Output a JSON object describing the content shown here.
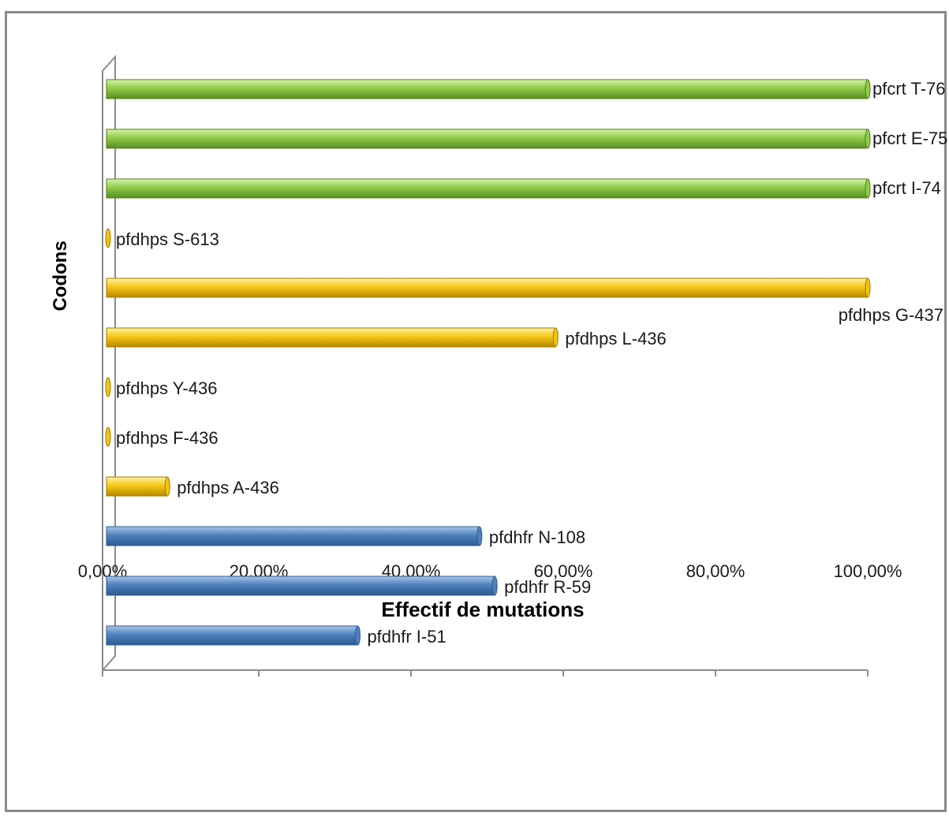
{
  "chart_data": {
    "type": "bar",
    "orientation": "horizontal",
    "xlabel": "Effectif de mutations",
    "ylabel": "Codons",
    "xlim": [
      0,
      100
    ],
    "x_ticks": [
      "0,00%",
      "20,00%",
      "40,00%",
      "60,00%",
      "80,00%",
      "100,00%"
    ],
    "grid": false,
    "legend": "none",
    "bars": [
      {
        "label": "pfdhfr I-51",
        "value": 33,
        "color": "#4f81bd"
      },
      {
        "label": "pfdhfr R-59",
        "value": 51,
        "color": "#4f81bd"
      },
      {
        "label": "pfdhfr N-108",
        "value": 49,
        "color": "#4f81bd"
      },
      {
        "label": "pfdhps A-436",
        "value": 8,
        "color": "#f2c314"
      },
      {
        "label": "pfdhps F-436",
        "value": 0,
        "color": "#f2c314"
      },
      {
        "label": "pfdhps Y-436",
        "value": 0,
        "color": "#f2c314"
      },
      {
        "label": "pfdhps L-436",
        "value": 59,
        "color": "#f2c314"
      },
      {
        "label": "pfdhps G-437",
        "value": 100,
        "color": "#f2c314"
      },
      {
        "label": "pfdhps S-613",
        "value": 0,
        "color": "#f2c314"
      },
      {
        "label": "pfcrt I-74",
        "value": 100,
        "color": "#8fcc4a"
      },
      {
        "label": "pfcrt E-75",
        "value": 100,
        "color": "#8fcc4a"
      },
      {
        "label": "pfcrt T-76",
        "value": 100,
        "color": "#8fcc4a"
      }
    ]
  }
}
